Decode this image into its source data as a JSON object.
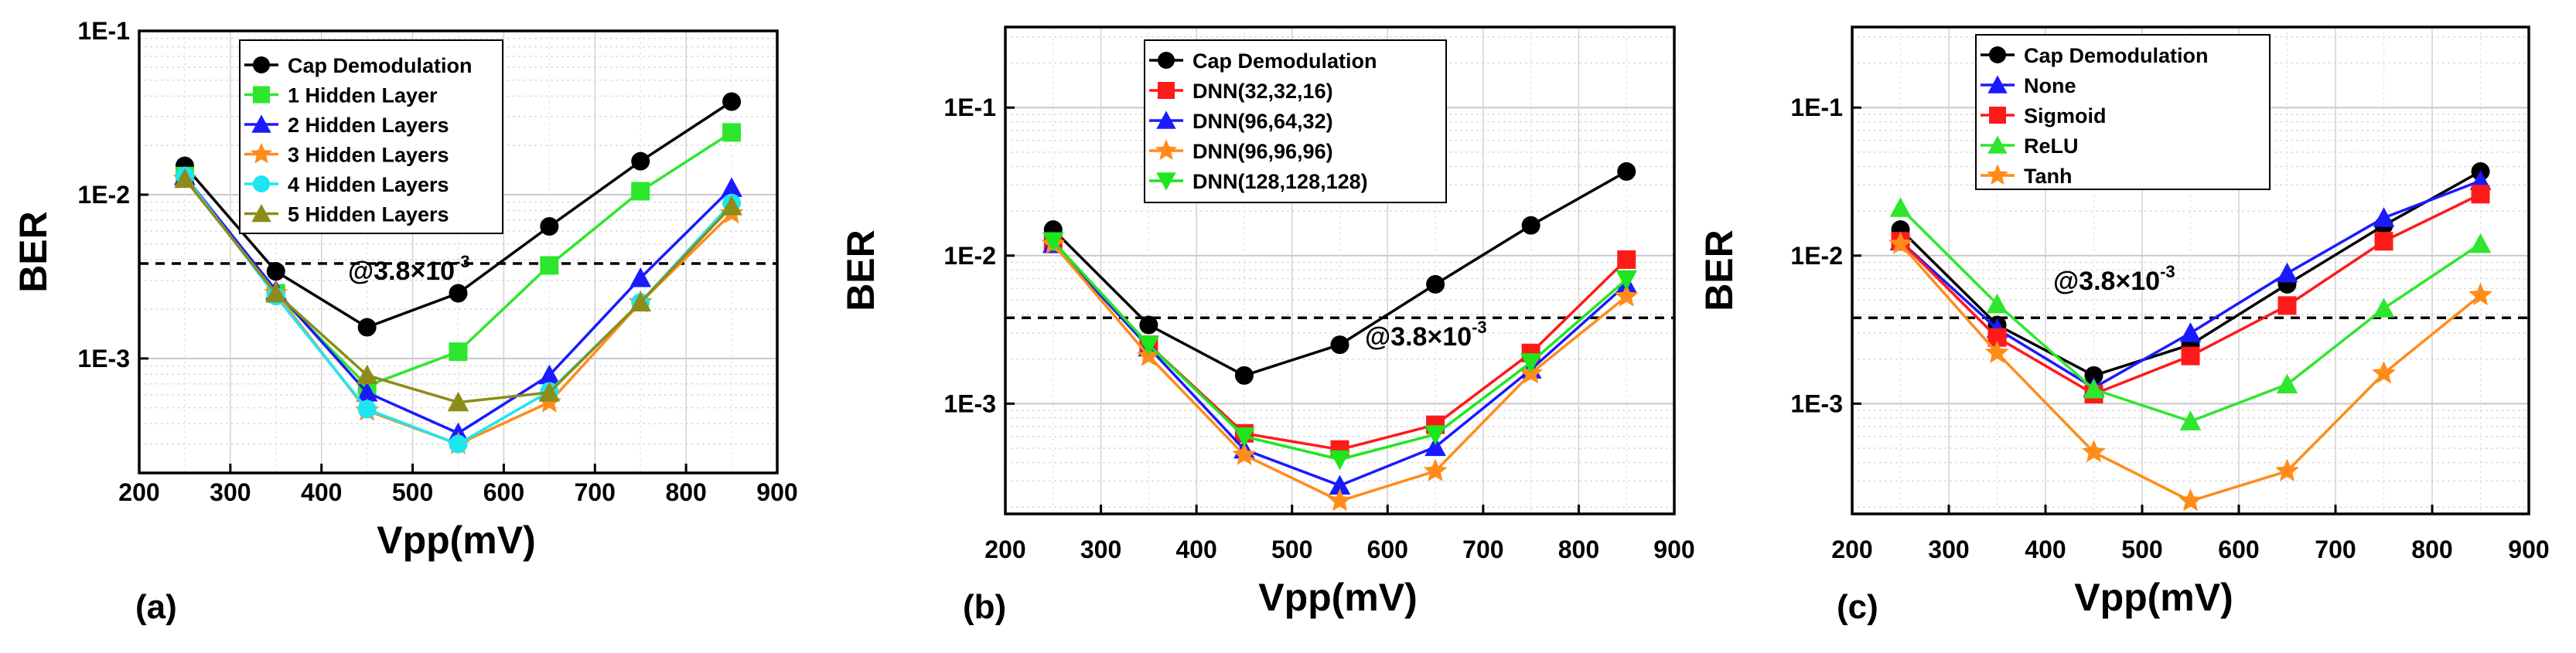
{
  "figure": {
    "panels": [
      {
        "label": "(a)",
        "legend_position": "top-right",
        "annotation": {
          "prefix": "@3.8×10",
          "exponent": "-3"
        },
        "series_colors": [
          "#000000",
          "#2ee62e",
          "#1a1aff",
          "#ff8c1a",
          "#1ee6f0",
          "#8c8c1a"
        ],
        "series_markers": [
          "circle",
          "square",
          "triangle",
          "star",
          "circle",
          "triangle"
        ]
      },
      {
        "label": "(b)",
        "legend_position": "top-right",
        "annotation": {
          "prefix": "@3.8×10",
          "exponent": "-3"
        },
        "series_colors": [
          "#000000",
          "#ff1a1a",
          "#1a1aff",
          "#ff8c1a",
          "#1ee61e"
        ],
        "series_markers": [
          "circle",
          "square",
          "triangle",
          "star",
          "triangle-down"
        ]
      },
      {
        "label": "(c)",
        "legend_position": "top-left",
        "annotation": {
          "prefix": "@3.8×10",
          "exponent": "-3"
        },
        "series_colors": [
          "#000000",
          "#1a1aff",
          "#ff1a1a",
          "#2ee62e",
          "#ff8c1a"
        ],
        "series_markers": [
          "circle",
          "triangle",
          "square",
          "triangle",
          "star"
        ]
      }
    ]
  },
  "chart_data": [
    {
      "type": "line",
      "title": "",
      "xlabel": "Vpp(mV)",
      "ylabel": "BER",
      "yscale": "log",
      "xlim": [
        200,
        900
      ],
      "ylim": [
        0.0002,
        0.1
      ],
      "xticks": [
        200,
        300,
        400,
        500,
        600,
        700,
        800,
        900
      ],
      "x_tick_labels": [
        "200",
        "300",
        "400",
        "500",
        "600",
        "700",
        "800",
        "900"
      ],
      "yticks": [
        0.001,
        0.01,
        0.1
      ],
      "y_tick_labels": [
        "1E-3",
        "1E-2",
        "1E-1"
      ],
      "grid": true,
      "threshold": 0.0038,
      "x": [
        250,
        350,
        450,
        550,
        650,
        750,
        850
      ],
      "series": [
        {
          "name": "Cap Demodulation",
          "values": [
            0.015,
            0.0034,
            0.00155,
            0.0025,
            0.0064,
            0.016,
            0.037
          ]
        },
        {
          "name": "1 Hidden Layer",
          "values": [
            0.013,
            0.0025,
            0.00068,
            0.0011,
            0.0037,
            0.0105,
            0.024
          ]
        },
        {
          "name": "2 Hidden Layers",
          "values": [
            0.013,
            0.0026,
            0.00062,
            0.00035,
            0.00079,
            0.0031,
            0.011
          ]
        },
        {
          "name": "3 Hidden Layers",
          "values": [
            0.0125,
            0.0025,
            0.00048,
            0.0003,
            0.00054,
            0.0022,
            0.0077
          ]
        },
        {
          "name": "4 Hidden Layers",
          "values": [
            0.013,
            0.0024,
            0.00049,
            0.0003,
            0.00063,
            0.0022,
            0.0089
          ]
        },
        {
          "name": "5 Hidden Layers",
          "values": [
            0.0125,
            0.0025,
            0.00079,
            0.00054,
            0.00062,
            0.0022,
            0.0085
          ]
        }
      ]
    },
    {
      "type": "line",
      "title": "",
      "xlabel": "Vpp(mV)",
      "ylabel": "BER",
      "yscale": "log",
      "xlim": [
        200,
        900
      ],
      "ylim": [
        0.00018,
        0.35
      ],
      "xticks": [
        200,
        300,
        400,
        500,
        600,
        700,
        800,
        900
      ],
      "x_tick_labels": [
        "200",
        "300",
        "400",
        "500",
        "600",
        "700",
        "800",
        "900"
      ],
      "yticks": [
        0.001,
        0.01,
        0.1
      ],
      "y_tick_labels": [
        "1E-3",
        "1E-2",
        "1E-1"
      ],
      "grid": true,
      "threshold": 0.0038,
      "x": [
        250,
        350,
        450,
        550,
        650,
        750,
        850
      ],
      "series": [
        {
          "name": "Cap Demodulation",
          "values": [
            0.015,
            0.0034,
            0.00155,
            0.0025,
            0.0064,
            0.016,
            0.037
          ]
        },
        {
          "name": "DNN(32,32,16)",
          "values": [
            0.012,
            0.0025,
            0.00063,
            0.00049,
            0.00072,
            0.0022,
            0.0094
          ]
        },
        {
          "name": "DNN(96,64,32)",
          "values": [
            0.012,
            0.0024,
            0.00049,
            0.00028,
            0.00051,
            0.0017,
            0.0064
          ]
        },
        {
          "name": "DNN(96,96,96)",
          "values": [
            0.012,
            0.0021,
            0.00045,
            0.00022,
            0.00035,
            0.0016,
            0.0053
          ]
        },
        {
          "name": "DNN(128,128,128)",
          "values": [
            0.0125,
            0.0025,
            0.0006,
            0.00042,
            0.00062,
            0.0019,
            0.0069
          ]
        }
      ]
    },
    {
      "type": "line",
      "title": "",
      "xlabel": "Vpp(mV)",
      "ylabel": "BER",
      "yscale": "log",
      "xlim": [
        200,
        900
      ],
      "ylim": [
        0.00018,
        0.35
      ],
      "xticks": [
        200,
        300,
        400,
        500,
        600,
        700,
        800,
        900
      ],
      "x_tick_labels": [
        "200",
        "300",
        "400",
        "500",
        "600",
        "700",
        "800",
        "900"
      ],
      "yticks": [
        0.001,
        0.01,
        0.1
      ],
      "y_tick_labels": [
        "1E-3",
        "1E-2",
        "1E-1"
      ],
      "grid": true,
      "threshold": 0.0038,
      "x": [
        250,
        350,
        450,
        550,
        650,
        750,
        850
      ],
      "series": [
        {
          "name": "Cap Demodulation",
          "values": [
            0.015,
            0.0034,
            0.00155,
            0.0025,
            0.0064,
            0.016,
            0.037
          ]
        },
        {
          "name": "None",
          "values": [
            0.0125,
            0.0032,
            0.00128,
            0.003,
            0.0076,
            0.018,
            0.032
          ]
        },
        {
          "name": "Sigmoid",
          "values": [
            0.0125,
            0.0028,
            0.00116,
            0.0021,
            0.0046,
            0.0125,
            0.026
          ]
        },
        {
          "name": "ReLU",
          "values": [
            0.021,
            0.0047,
            0.00125,
            0.00076,
            0.00135,
            0.0044,
            0.012
          ]
        },
        {
          "name": "Tanh",
          "values": [
            0.012,
            0.0022,
            0.00047,
            0.00022,
            0.00035,
            0.0016,
            0.0054
          ]
        }
      ]
    }
  ]
}
